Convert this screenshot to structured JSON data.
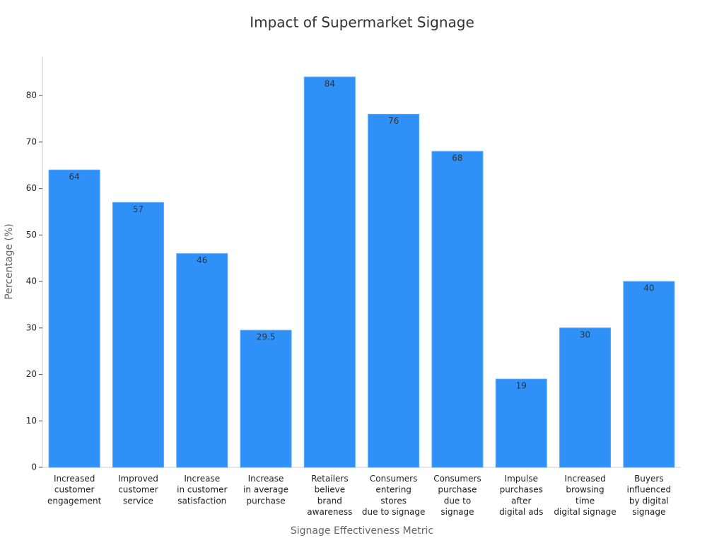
{
  "chart_data": {
    "type": "bar",
    "title": "Impact of Supermarket Signage",
    "x_label": "Signage Effectiveness Metric",
    "y_label": "Percentage (%)",
    "categories": [
      [
        "Increased",
        "customer",
        "engagement"
      ],
      [
        "Improved",
        "customer",
        "service"
      ],
      [
        "Increase",
        "in customer",
        "satisfaction"
      ],
      [
        "Increase",
        "in average",
        "purchase"
      ],
      [
        "Retailers",
        "believe",
        "brand",
        "awareness"
      ],
      [
        "Consumers",
        "entering",
        "stores",
        "due to signage"
      ],
      [
        "Consumers",
        "purchase",
        "due to",
        "signage"
      ],
      [
        "Impulse",
        "purchases",
        "after",
        "digital ads"
      ],
      [
        "Increased",
        "browsing",
        "time",
        "digital signage"
      ],
      [
        "Buyers",
        "influenced",
        "by digital",
        "signage"
      ]
    ],
    "values": [
      64,
      57,
      46,
      29.5,
      84,
      76,
      68,
      19,
      30,
      40
    ],
    "color": "#2f91f8",
    "ylim": [
      0,
      88.4
    ],
    "yticks": [
      0,
      10,
      20,
      30,
      40,
      50,
      60,
      70,
      80
    ],
    "grid": false
  }
}
